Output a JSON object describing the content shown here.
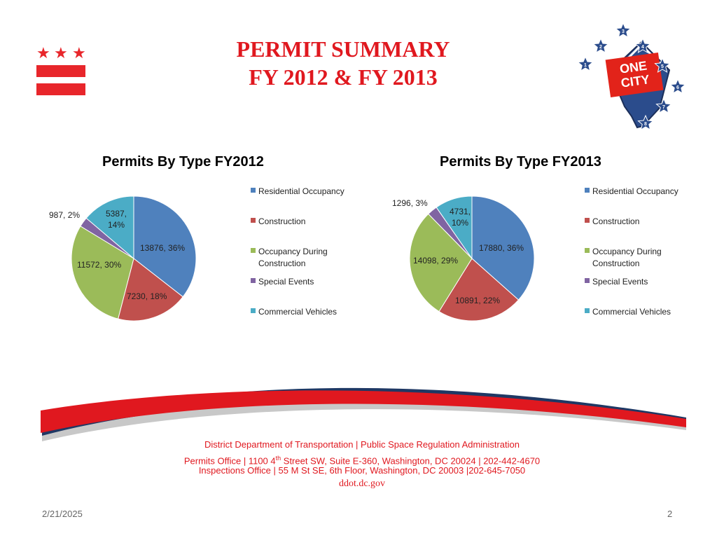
{
  "slide": {
    "title_line1": "PERMIT SUMMARY",
    "title_line2": "FY 2012 & FY 2013",
    "date": "2/21/2025",
    "page_number": "2"
  },
  "logo": {
    "text_line1": "ONE",
    "text_line2": "CITY",
    "star_numbers": [
      "1",
      "2",
      "3",
      "4",
      "5",
      "6",
      "7",
      "8"
    ]
  },
  "flag": {
    "stars": [
      "★",
      "★",
      "★"
    ]
  },
  "colors": {
    "residential": "#4f81bd",
    "construction": "#c0504d",
    "occupancy_during_construction": "#9bbb59",
    "special_events": "#8064a2",
    "commercial_vehicles": "#4bacc6",
    "title_red": "#e0181f"
  },
  "chart_data": [
    {
      "type": "pie",
      "title": "Permits By Type FY2012",
      "categories": [
        "Residential Occupancy",
        "Construction",
        "Occupancy During Construction",
        "Special Events",
        "Commercial Vehicles"
      ],
      "values": [
        13876,
        7230,
        11572,
        987,
        5387
      ],
      "labels": [
        "13876, 36%",
        "7230, 18%",
        "11572, 30%",
        "987, 2%",
        "5387, 14%"
      ],
      "legend_position": "right"
    },
    {
      "type": "pie",
      "title": "Permits By Type FY2013",
      "categories": [
        "Residential Occupancy",
        "Construction",
        "Occupancy During Construction",
        "Special Events",
        "Commercial Vehicles"
      ],
      "values": [
        17880,
        10891,
        14098,
        1296,
        4731
      ],
      "labels": [
        "17880, 36%",
        "10891, 22%",
        "14098, 29%",
        "1296, 3%",
        "4731, 10%"
      ],
      "legend_position": "right"
    }
  ],
  "legend": {
    "items": [
      "Residential Occupancy",
      "Construction",
      "Occupancy During Construction",
      "Special Events",
      "Commercial Vehicles"
    ]
  },
  "footer": {
    "line1": "District Department of Transportation | Public Space Regulation Administration",
    "line2_a": "Permits Office | 1100 4",
    "line2_sup": "th",
    "line2_b": " Street SW, Suite E-360, Washington, DC 20024 | 202-442-4670",
    "line3": "Inspections Office | 55 M St SE, 6th Floor, Washington, DC 20003  |202-645-7050",
    "line4": "ddot.dc.gov"
  }
}
